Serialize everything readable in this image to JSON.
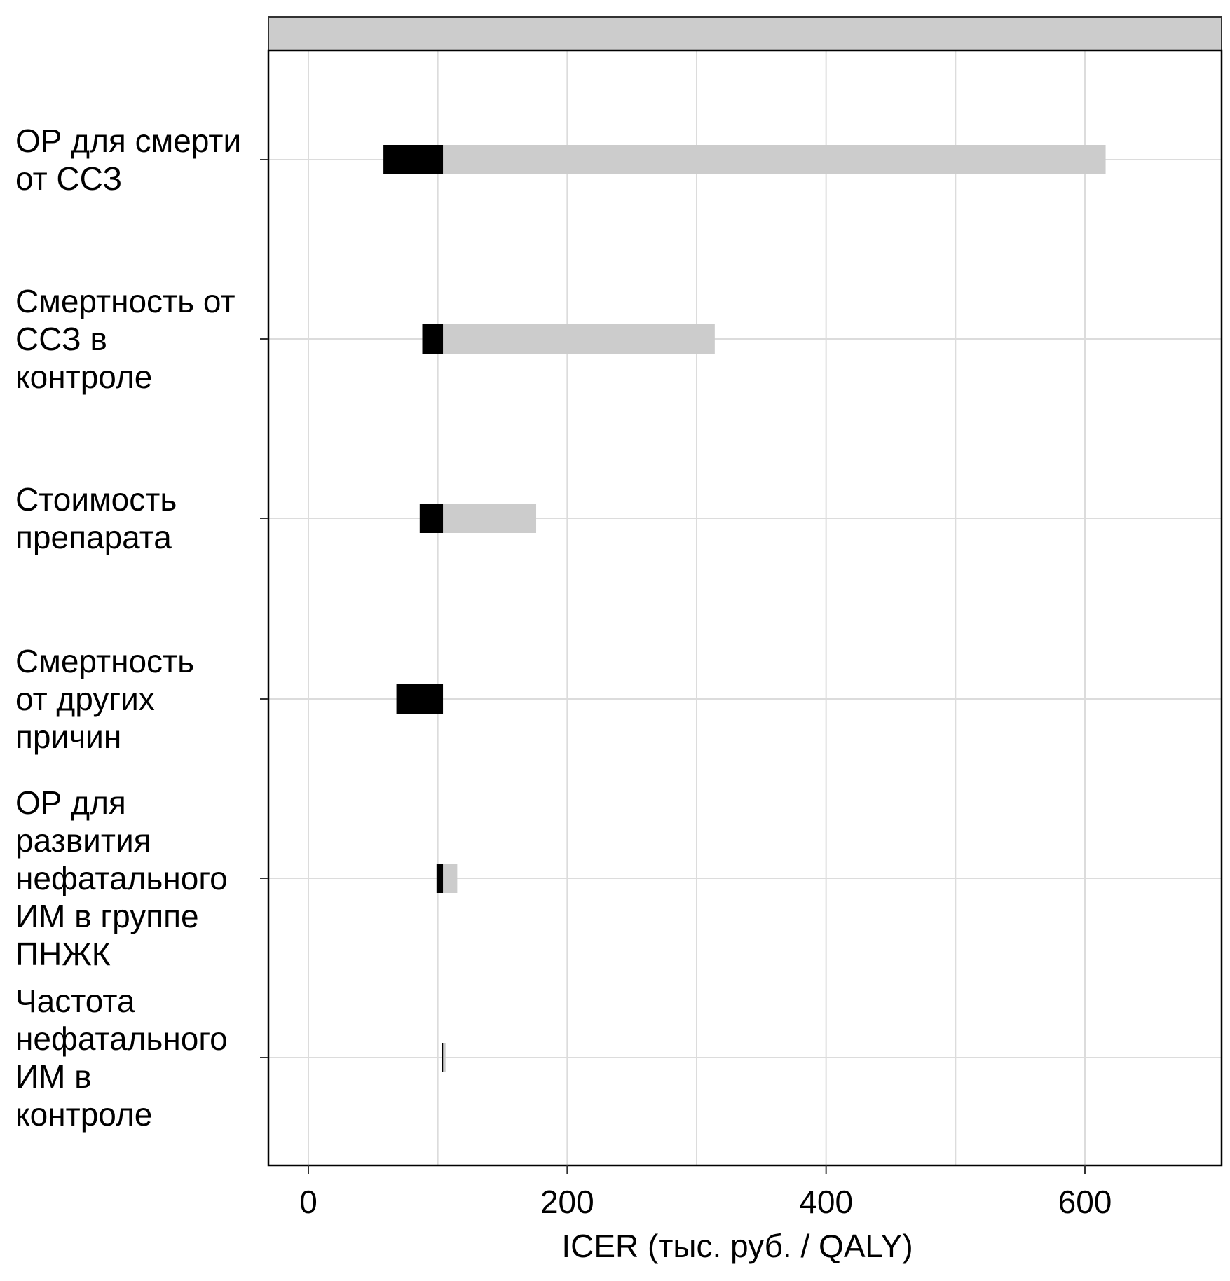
{
  "chart_data": {
    "type": "bar",
    "orientation": "horizontal",
    "subtype": "tornado",
    "xlabel": "ICER (тыс. руб. / QALY)",
    "xlim": [
      -30,
      700
    ],
    "xticks": [
      0,
      200,
      400,
      600
    ],
    "base_value": 104,
    "grid": true,
    "categories": [
      {
        "lines": [
          "ОР для смерти",
          "от ССЗ"
        ],
        "low": 58,
        "high": 616
      },
      {
        "lines": [
          "Смертность от",
          "ССЗ в",
          "контроле"
        ],
        "low": 88,
        "high": 314
      },
      {
        "lines": [
          "Стоимость",
          "препарата"
        ],
        "low": 86,
        "high": 176
      },
      {
        "lines": [
          "Смертность",
          "от других",
          "причин"
        ],
        "low": 68,
        "high": 104
      },
      {
        "lines": [
          "ОР для",
          "развития",
          "нефатального",
          "ИМ в группе",
          "ПНЖК"
        ],
        "low": 99,
        "high": 115
      },
      {
        "lines": [
          "Частота",
          "нефатального",
          "ИМ в",
          "контроле"
        ],
        "low": 103,
        "high": 106
      }
    ],
    "colors": {
      "low_bar": "#000000",
      "high_bar": "#cccccc",
      "strip": "#cccccc",
      "grid": "#dcdcdc",
      "frame": "#333333"
    }
  }
}
